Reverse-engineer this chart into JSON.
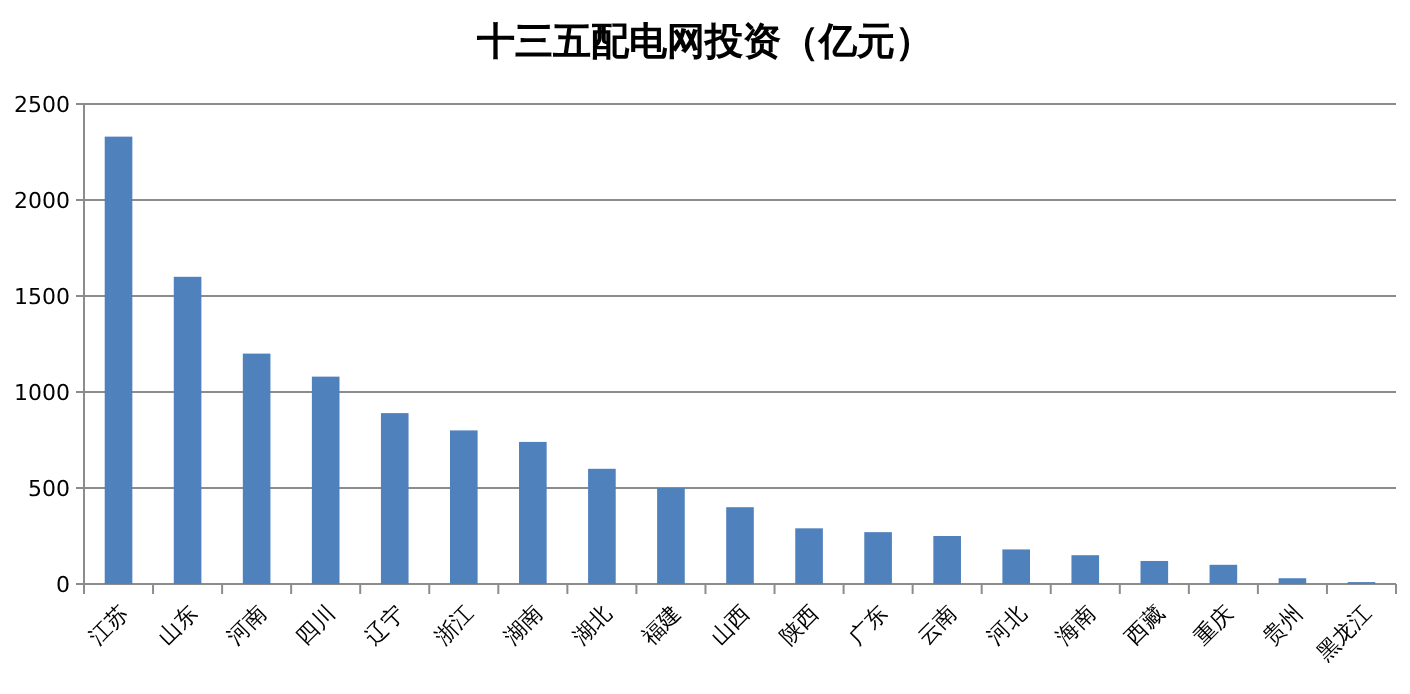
{
  "chart_data": {
    "type": "bar",
    "title": "十三五配电网投资（亿元）",
    "categories": [
      "江苏",
      "山东",
      "河南",
      "四川",
      "辽宁",
      "浙江",
      "湖南",
      "湖北",
      "福建",
      "山西",
      "陕西",
      "广东",
      "云南",
      "河北",
      "海南",
      "西藏",
      "重庆",
      "贵州",
      "黑龙江"
    ],
    "values": [
      2330,
      1600,
      1200,
      1080,
      890,
      800,
      740,
      600,
      500,
      400,
      290,
      270,
      250,
      180,
      150,
      120,
      100,
      30,
      10
    ],
    "color": "#4f81bd",
    "ylim": [
      0,
      2500
    ],
    "yticks": [
      0,
      500,
      1000,
      1500,
      2000,
      2500
    ],
    "grid": "y"
  }
}
